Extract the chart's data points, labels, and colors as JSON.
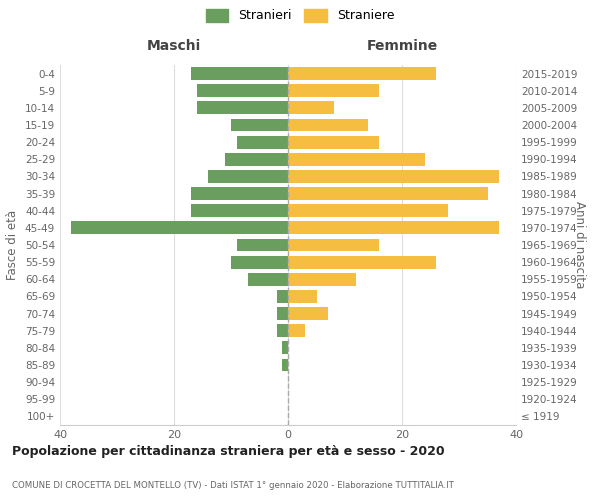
{
  "age_groups": [
    "100+",
    "95-99",
    "90-94",
    "85-89",
    "80-84",
    "75-79",
    "70-74",
    "65-69",
    "60-64",
    "55-59",
    "50-54",
    "45-49",
    "40-44",
    "35-39",
    "30-34",
    "25-29",
    "20-24",
    "15-19",
    "10-14",
    "5-9",
    "0-4"
  ],
  "birth_years": [
    "≤ 1919",
    "1920-1924",
    "1925-1929",
    "1930-1934",
    "1935-1939",
    "1940-1944",
    "1945-1949",
    "1950-1954",
    "1955-1959",
    "1960-1964",
    "1965-1969",
    "1970-1974",
    "1975-1979",
    "1980-1984",
    "1985-1989",
    "1990-1994",
    "1995-1999",
    "2000-2004",
    "2005-2009",
    "2010-2014",
    "2015-2019"
  ],
  "males": [
    0,
    0,
    0,
    1,
    1,
    2,
    2,
    2,
    7,
    10,
    9,
    38,
    17,
    17,
    14,
    11,
    9,
    10,
    16,
    16,
    17
  ],
  "females": [
    0,
    0,
    0,
    0,
    0,
    3,
    7,
    5,
    12,
    26,
    16,
    37,
    28,
    35,
    37,
    24,
    16,
    14,
    8,
    16,
    26
  ],
  "male_color": "#6a9e5e",
  "female_color": "#f5be41",
  "title": "Popolazione per cittadinanza straniera per età e sesso - 2020",
  "subtitle": "COMUNE DI CROCETTA DEL MONTELLO (TV) - Dati ISTAT 1° gennaio 2020 - Elaborazione TUTTITALIA.IT",
  "xlabel_left": "Maschi",
  "xlabel_right": "Femmine",
  "ylabel_left": "Fasce di età",
  "ylabel_right": "Anni di nascita",
  "legend_male": "Stranieri",
  "legend_female": "Straniere",
  "xlim": 40,
  "background_color": "#ffffff",
  "grid_color": "#dddddd",
  "text_color": "#666666"
}
